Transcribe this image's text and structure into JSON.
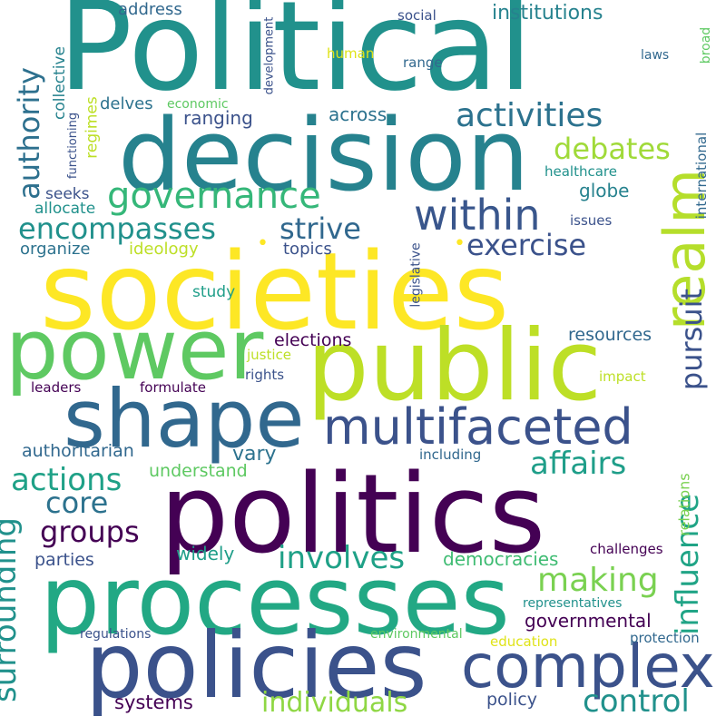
{
  "background": "#ffffff",
  "palette": [
    "#440154",
    "#3b528b",
    "#21918c",
    "#5ec962",
    "#fde725"
  ],
  "words": [
    {
      "id": "political",
      "text": "Political",
      "color": "#21918c",
      "weight": 1.0
    },
    {
      "id": "decision",
      "text": "decision",
      "color": "#26828e",
      "weight": 0.85
    },
    {
      "id": "societies",
      "text": "societies",
      "color": "#fde725",
      "weight": 0.95
    },
    {
      "id": "power",
      "text": "power",
      "color": "#5ec962",
      "weight": 0.8
    },
    {
      "id": "public",
      "text": "public",
      "color": "#bddf26",
      "weight": 0.82
    },
    {
      "id": "shape",
      "text": "shape",
      "color": "#31688e",
      "weight": 0.72
    },
    {
      "id": "politics",
      "text": "politics",
      "color": "#440154",
      "weight": 1.0
    },
    {
      "id": "processes",
      "text": "processes",
      "color": "#22a884",
      "weight": 0.9
    },
    {
      "id": "policies",
      "text": "policies",
      "color": "#3b528b",
      "weight": 0.88
    },
    {
      "id": "complex",
      "text": "complex",
      "color": "#3b528b",
      "weight": 0.6
    },
    {
      "id": "multifaceted",
      "text": "multifaceted",
      "color": "#3b528b",
      "weight": 0.5
    },
    {
      "id": "realm",
      "text": "realm",
      "color": "#b5de2b",
      "weight": 0.55
    },
    {
      "id": "within",
      "text": "within",
      "color": "#39568c",
      "weight": 0.42
    },
    {
      "id": "governance",
      "text": "governance",
      "color": "#35b779",
      "weight": 0.38
    },
    {
      "id": "activities",
      "text": "activities",
      "color": "#2c728e",
      "weight": 0.32
    },
    {
      "id": "debates",
      "text": "debates",
      "color": "#a0da39",
      "weight": 0.3
    },
    {
      "id": "encompasses",
      "text": "encompasses",
      "color": "#21918c",
      "weight": 0.28
    },
    {
      "id": "strive",
      "text": "strive",
      "color": "#31688e",
      "weight": 0.28
    },
    {
      "id": "exercise",
      "text": "exercise",
      "color": "#3b528b",
      "weight": 0.28
    },
    {
      "id": "authority",
      "text": "authority",
      "color": "#2d708e",
      "weight": 0.28
    },
    {
      "id": "pursuit",
      "text": "pursuit",
      "color": "#3b528b",
      "weight": 0.26
    },
    {
      "id": "affairs",
      "text": "affairs",
      "color": "#1f9e89",
      "weight": 0.3
    },
    {
      "id": "actions",
      "text": "actions",
      "color": "#1fa187",
      "weight": 0.3
    },
    {
      "id": "core",
      "text": "core",
      "color": "#2c728e",
      "weight": 0.26
    },
    {
      "id": "groups",
      "text": "groups",
      "color": "#440154",
      "weight": 0.26
    },
    {
      "id": "involves",
      "text": "involves",
      "color": "#1fa187",
      "weight": 0.3
    },
    {
      "id": "making",
      "text": "making",
      "color": "#7ad151",
      "weight": 0.32
    },
    {
      "id": "influence",
      "text": "influence",
      "color": "#20a486",
      "weight": 0.3
    },
    {
      "id": "surrounding",
      "text": "surrounding",
      "color": "#21918c",
      "weight": 0.3
    },
    {
      "id": "individuals",
      "text": "individuals",
      "color": "#8fd744",
      "weight": 0.28
    },
    {
      "id": "control",
      "text": "control",
      "color": "#21918c",
      "weight": 0.3
    },
    {
      "id": "systems",
      "text": "systems",
      "color": "#440154",
      "weight": 0.18
    },
    {
      "id": "policy",
      "text": "policy",
      "color": "#3b528b",
      "weight": 0.16
    },
    {
      "id": "governmental",
      "text": "governmental",
      "color": "#440154",
      "weight": 0.18
    },
    {
      "id": "democracies",
      "text": "democracies",
      "color": "#3fbc73",
      "weight": 0.18
    },
    {
      "id": "widely",
      "text": "widely",
      "color": "#1f9e89",
      "weight": 0.17
    },
    {
      "id": "parties",
      "text": "parties",
      "color": "#3b528b",
      "weight": 0.16
    },
    {
      "id": "understand",
      "text": "understand",
      "color": "#5ec962",
      "weight": 0.16
    },
    {
      "id": "vary",
      "text": "vary",
      "color": "#2c728e",
      "weight": 0.18
    },
    {
      "id": "authoritarian",
      "text": "authoritarian",
      "color": "#31688e",
      "weight": 0.16
    },
    {
      "id": "elections",
      "text": "elections",
      "color": "#440154",
      "weight": 0.17
    },
    {
      "id": "resources",
      "text": "resources",
      "color": "#31688e",
      "weight": 0.17
    },
    {
      "id": "leaders",
      "text": "leaders",
      "color": "#440154",
      "weight": 0.13
    },
    {
      "id": "formulate",
      "text": "formulate",
      "color": "#440154",
      "weight": 0.13
    },
    {
      "id": "justice",
      "text": "justice",
      "color": "#bddf26",
      "weight": 0.13
    },
    {
      "id": "rights",
      "text": "rights",
      "color": "#3b528b",
      "weight": 0.13
    },
    {
      "id": "impact",
      "text": "impact",
      "color": "#bddf26",
      "weight": 0.13
    },
    {
      "id": "study",
      "text": "study",
      "color": "#1f9e89",
      "weight": 0.14
    },
    {
      "id": "organize",
      "text": "organize",
      "color": "#2c728e",
      "weight": 0.15
    },
    {
      "id": "ideology",
      "text": "ideology",
      "color": "#bddf26",
      "weight": 0.15
    },
    {
      "id": "topics",
      "text": "topics",
      "color": "#3b528b",
      "weight": 0.15
    },
    {
      "id": "globe",
      "text": "globe",
      "color": "#26828e",
      "weight": 0.16
    },
    {
      "id": "issues",
      "text": "issues",
      "color": "#3b528b",
      "weight": 0.13
    },
    {
      "id": "international",
      "text": "international",
      "color": "#31688e",
      "weight": 0.13
    },
    {
      "id": "legislative",
      "text": "legislative",
      "color": "#3b528b",
      "weight": 0.12
    },
    {
      "id": "healthcare",
      "text": "healthcare",
      "color": "#21918c",
      "weight": 0.13
    },
    {
      "id": "seeks",
      "text": "seeks",
      "color": "#3b528b",
      "weight": 0.14
    },
    {
      "id": "allocate",
      "text": "allocate",
      "color": "#21918c",
      "weight": 0.14
    },
    {
      "id": "ranging",
      "text": "ranging",
      "color": "#3b528b",
      "weight": 0.17
    },
    {
      "id": "across",
      "text": "across",
      "color": "#2c728e",
      "weight": 0.17
    },
    {
      "id": "delves",
      "text": "delves",
      "color": "#2c728e",
      "weight": 0.15
    },
    {
      "id": "economic",
      "text": "economic",
      "color": "#5ec962",
      "weight": 0.12
    },
    {
      "id": "regimes",
      "text": "regimes",
      "color": "#bddf26",
      "weight": 0.14
    },
    {
      "id": "functioning",
      "text": "functioning",
      "color": "#3b528b",
      "weight": 0.11
    },
    {
      "id": "collective",
      "text": "collective",
      "color": "#26828e",
      "weight": 0.14
    },
    {
      "id": "address",
      "text": "address",
      "color": "#31688e",
      "weight": 0.15
    },
    {
      "id": "institutions",
      "text": "institutions",
      "color": "#26828e",
      "weight": 0.19
    },
    {
      "id": "development",
      "text": "development",
      "color": "#3b528b",
      "weight": 0.11
    },
    {
      "id": "social",
      "text": "social",
      "color": "#3b528b",
      "weight": 0.13
    },
    {
      "id": "human",
      "text": "human",
      "color": "#dfe318",
      "weight": 0.13
    },
    {
      "id": "range",
      "text": "range",
      "color": "#31688e",
      "weight": 0.13
    },
    {
      "id": "laws",
      "text": "laws",
      "color": "#31688e",
      "weight": 0.12
    },
    {
      "id": "broad",
      "text": "broad",
      "color": "#5ec962",
      "weight": 0.12
    },
    {
      "id": "including",
      "text": "including",
      "color": "#31688e",
      "weight": 0.13
    },
    {
      "id": "relations",
      "text": "relations",
      "color": "#7ad151",
      "weight": 0.14
    },
    {
      "id": "challenges",
      "text": "challenges",
      "color": "#440154",
      "weight": 0.13
    },
    {
      "id": "representatives",
      "text": "representatives",
      "color": "#21918c",
      "weight": 0.12
    },
    {
      "id": "regulations",
      "text": "regulations",
      "color": "#3b528b",
      "weight": 0.12
    },
    {
      "id": "environmental",
      "text": "environmental",
      "color": "#5ec962",
      "weight": 0.12
    },
    {
      "id": "education",
      "text": "education",
      "color": "#dfe318",
      "weight": 0.13
    },
    {
      "id": "protection",
      "text": "protection",
      "color": "#31688e",
      "weight": 0.13
    },
    {
      "id": "dot1",
      "text": "•",
      "color": "#fde725",
      "weight": 0.1
    },
    {
      "id": "dot2",
      "text": "•",
      "color": "#fde725",
      "weight": 0.1
    }
  ]
}
